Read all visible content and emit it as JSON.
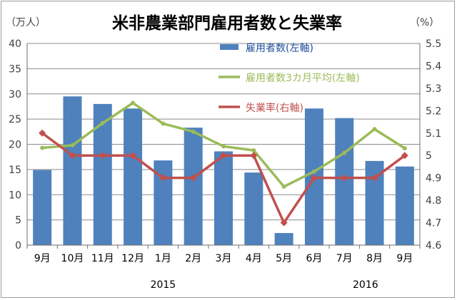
{
  "chart_data": {
    "type": "bar",
    "title": "米非農業部門雇用者数と失業率",
    "ylabel": "（万人）",
    "y2label": "（%）",
    "categories": [
      "9月",
      "10月",
      "11月",
      "12月",
      "1月",
      "2月",
      "3月",
      "4月",
      "5月",
      "6月",
      "7月",
      "8月",
      "9月"
    ],
    "year_labels": [
      {
        "text": "2015",
        "category_index": 4
      },
      {
        "text": "2016",
        "category_index": 10.7
      }
    ],
    "ylim": [
      0,
      40
    ],
    "yticks": [
      0,
      5,
      10,
      15,
      20,
      25,
      30,
      35,
      40
    ],
    "y2lim": [
      4.6,
      5.5
    ],
    "y2ticks": [
      "4.6",
      "4.7",
      "4.8",
      "4.9",
      "5",
      "5.1",
      "5.2",
      "5.3",
      "5.4",
      "5.5"
    ],
    "grid": true,
    "legend_position": "top-right-inside",
    "series": [
      {
        "name": "雇用者数(左軸)",
        "kind": "bar",
        "axis": "left",
        "color": "#4f81bd",
        "values": [
          14.9,
          29.5,
          28.0,
          27.1,
          16.8,
          23.3,
          18.6,
          14.4,
          2.4,
          27.1,
          25.2,
          16.7,
          15.6
        ]
      },
      {
        "name": "雇用者数3カ月平均(左軸)",
        "kind": "line",
        "axis": "left",
        "color": "#9bbb59",
        "values": [
          19.3,
          19.8,
          24.2,
          28.2,
          24.1,
          22.5,
          19.6,
          18.8,
          11.6,
          14.6,
          18.3,
          23.0,
          19.2
        ]
      },
      {
        "name": "失業率(右軸)",
        "kind": "line",
        "axis": "right",
        "color": "#c0504d",
        "marker": "diamond",
        "values": [
          5.1,
          5.0,
          5.0,
          5.0,
          4.9,
          4.9,
          5.0,
          5.0,
          4.7,
          4.9,
          4.9,
          4.9,
          5.0
        ]
      }
    ]
  }
}
